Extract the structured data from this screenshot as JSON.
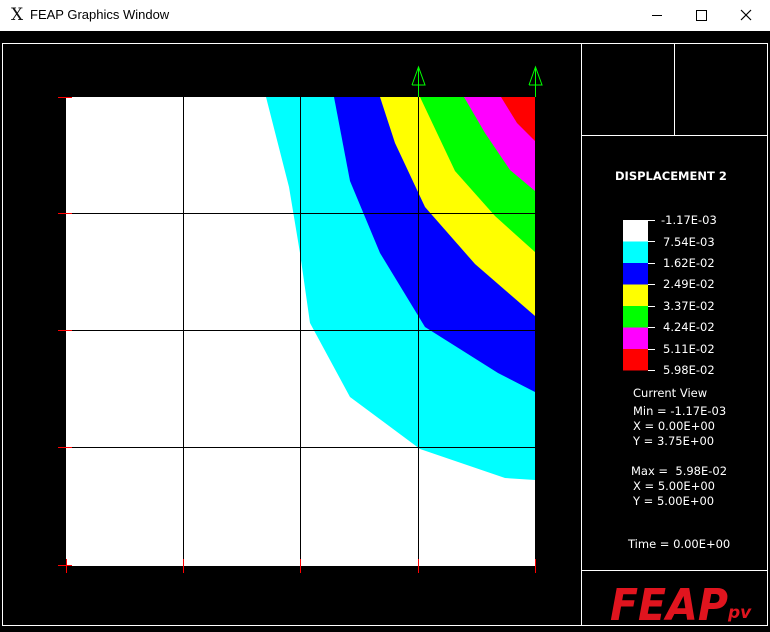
{
  "window": {
    "title": "FEAP Graphics Window",
    "app_icon": "X",
    "minimize_icon": "minimize-icon",
    "maximize_icon": "maximize-icon",
    "close_icon": "close-icon"
  },
  "legend": {
    "title": "DISPLACEMENT 2",
    "values": [
      "-1.17E-03",
      "7.54E-03",
      "1.62E-02",
      "2.49E-02",
      "3.37E-02",
      "4.24E-02",
      "5.11E-02",
      "5.98E-02"
    ],
    "colors": [
      "#ffffff",
      "#00ffff",
      "#0000ff",
      "#ffff00",
      "#00ff00",
      "#ff00ff",
      "#ff0000"
    ]
  },
  "view": {
    "heading": "Current View",
    "min": "Min = -1.17E-03",
    "min_x": "X = 0.00E+00",
    "min_y": "Y = 3.75E+00",
    "max": "Max =  5.98E-02",
    "max_x": "X = 5.00E+00",
    "max_y": "Y = 5.00E+00",
    "time": "Time = 0.00E+00"
  },
  "logo": {
    "main": "FEAP",
    "sub": "pv"
  },
  "colors": {
    "background": "#000000",
    "foreground": "#ffffff",
    "mesh": "#000000",
    "boundary_marks": "#ff0000",
    "load_arrows": "#00ff00",
    "logo": "#e0141e"
  }
}
